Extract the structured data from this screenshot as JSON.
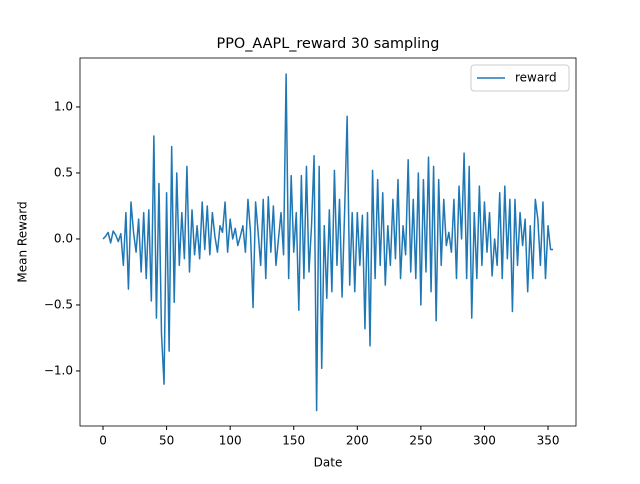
{
  "chart_data": {
    "type": "line",
    "title": "PPO_AAPL_reward 30 sampling",
    "x_label": "Date",
    "y_label": "Mean Reward",
    "x": [
      0,
      2,
      4,
      6,
      8,
      10,
      12,
      14,
      16,
      18,
      20,
      22,
      24,
      26,
      28,
      30,
      32,
      34,
      36,
      38,
      40,
      42,
      44,
      46,
      48,
      50,
      52,
      54,
      56,
      58,
      60,
      62,
      64,
      66,
      68,
      70,
      72,
      74,
      76,
      78,
      80,
      82,
      84,
      86,
      88,
      90,
      92,
      94,
      96,
      98,
      100,
      102,
      104,
      106,
      108,
      110,
      112,
      114,
      116,
      118,
      120,
      122,
      124,
      126,
      128,
      130,
      132,
      134,
      136,
      138,
      140,
      142,
      144,
      146,
      148,
      150,
      152,
      154,
      156,
      158,
      160,
      162,
      164,
      166,
      168,
      170,
      172,
      174,
      176,
      178,
      180,
      182,
      184,
      186,
      188,
      190,
      192,
      194,
      196,
      198,
      200,
      202,
      204,
      206,
      208,
      210,
      212,
      214,
      216,
      218,
      220,
      222,
      224,
      226,
      228,
      230,
      232,
      234,
      236,
      238,
      240,
      242,
      244,
      246,
      248,
      250,
      252,
      254,
      256,
      258,
      260,
      262,
      264,
      266,
      268,
      270,
      272,
      274,
      276,
      278,
      280,
      282,
      284,
      286,
      288,
      290,
      292,
      294,
      296,
      298,
      300,
      302,
      304,
      306,
      308,
      310,
      312,
      314,
      316,
      318,
      320,
      322,
      324,
      326,
      328,
      330,
      332,
      334,
      336,
      338,
      340,
      342,
      344,
      346,
      348,
      350,
      352,
      354
    ],
    "series": [
      {
        "name": "reward",
        "color": "#1f77b4",
        "values": [
          0,
          0.02,
          0.05,
          -0.03,
          0.06,
          0.03,
          -0.02,
          0.04,
          -0.2,
          0.2,
          -0.38,
          0.28,
          0.05,
          -0.1,
          0.15,
          -0.25,
          0.2,
          -0.3,
          0.22,
          -0.47,
          0.78,
          -0.6,
          0.42,
          -0.72,
          -1.1,
          0.35,
          -0.85,
          0.7,
          -0.48,
          0.5,
          -0.2,
          0.2,
          -0.15,
          0.55,
          -0.25,
          0.22,
          -0.12,
          0.1,
          -0.15,
          0.28,
          -0.08,
          0.25,
          -0.12,
          0.2,
          0.02,
          -0.1,
          0.1,
          0.05,
          0.28,
          -0.1,
          0.15,
          0.0,
          0.08,
          -0.05,
          0.02,
          0.1,
          -0.1,
          0.3,
          0.05,
          -0.52,
          0.28,
          0.05,
          -0.2,
          0.3,
          -0.3,
          0.32,
          -0.1,
          0.25,
          -0.2,
          0.0,
          0.2,
          -0.12,
          1.25,
          -0.3,
          0.48,
          -0.1,
          0.2,
          -0.54,
          0.48,
          -0.3,
          0.55,
          -0.25,
          0.1,
          0.63,
          -1.3,
          0.55,
          -0.98,
          0.1,
          -0.45,
          0.22,
          -0.4,
          0.52,
          -0.2,
          0.3,
          -0.44,
          0.2,
          0.93,
          -0.35,
          0.2,
          -0.4,
          0.2,
          -0.2,
          0.18,
          -0.68,
          0.2,
          -0.81,
          0.52,
          -0.3,
          0.45,
          -0.2,
          0.35,
          -0.35,
          0.1,
          -0.2,
          0.3,
          -0.15,
          0.45,
          -0.3,
          0.1,
          -0.12,
          0.6,
          -0.25,
          0.3,
          -0.3,
          0.5,
          -0.5,
          0.45,
          -0.25,
          0.62,
          -0.4,
          0.55,
          -0.62,
          0.45,
          -0.2,
          0.3,
          -0.05,
          0.05,
          -0.1,
          0.3,
          -0.3,
          0.4,
          0.0,
          0.65,
          -0.3,
          0.55,
          -0.6,
          0.2,
          -0.3,
          0.4,
          -0.2,
          0.28,
          -0.1,
          0.2,
          -0.28,
          0.0,
          -0.2,
          0.35,
          -0.3,
          0.4,
          -0.15,
          0.3,
          -0.55,
          0.3,
          -0.2,
          0.2,
          -0.05,
          0.15,
          -0.4,
          0.1,
          -0.3,
          0.3,
          0.15,
          -0.2,
          0.28,
          -0.3,
          0.1,
          -0.08,
          -0.08
        ]
      }
    ],
    "xlim": [
      -18.1,
      372
    ],
    "xticks": [
      0,
      50,
      100,
      150,
      200,
      250,
      300,
      350
    ],
    "ylim": [
      -1.417,
      1.371
    ],
    "yticks": [
      {
        "value": -1.0,
        "label": "−1.0"
      },
      {
        "value": -0.5,
        "label": "−0.5"
      },
      {
        "value": 0.0,
        "label": "0.0"
      },
      0.5,
      {
        "value": 1.0,
        "label": "1.0"
      }
    ],
    "legend": "upper right",
    "grid": false
  }
}
